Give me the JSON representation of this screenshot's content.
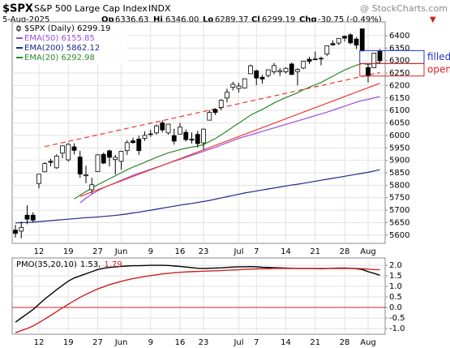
{
  "header": {
    "symbol": "$SPX",
    "name": "S&P 500 Large Cap Index",
    "exchange": "INDX",
    "source": "@ StockCharts.com",
    "date": "5-Aug-2025",
    "open_label": "Op",
    "open": "6336.63",
    "high_label": "Hi",
    "high": "6346.00",
    "low_label": "Lo",
    "low": "6289.37",
    "close_label": "Cl",
    "close": "6299.19",
    "change_label": "Chg",
    "change": "-30.75 (-0.49%)",
    "arrow": "▼"
  },
  "chart_data": [
    {
      "type": "candlestick",
      "legend": "$SPX (Daily) 6299.19",
      "categories": [
        null,
        null,
        null,
        null,
        "12",
        null,
        null,
        null,
        null,
        "19",
        null,
        null,
        null,
        null,
        "27",
        null,
        null,
        null,
        "Jun",
        null,
        null,
        null,
        null,
        "9",
        null,
        null,
        null,
        null,
        "16",
        null,
        null,
        null,
        "23",
        null,
        null,
        null,
        null,
        null,
        "Jul",
        null,
        null,
        "7",
        null,
        null,
        null,
        null,
        "14",
        null,
        null,
        null,
        null,
        "21",
        null,
        null,
        null,
        null,
        "28",
        null,
        null,
        null,
        "Aug",
        null,
        null
      ],
      "open": [
        5620,
        5616,
        5680,
        5680,
        5807,
        5854,
        5896,
        5870,
        5929,
        5902,
        5954,
        5913,
        5838,
        5782,
        5855,
        5924,
        5938,
        5903,
        5896,
        5939,
        5978,
        5985,
        5988,
        6005,
        6010,
        6050,
        6010,
        5999,
        6005,
        6012,
        5985,
        6004,
        5970,
        6061,
        6104,
        6112,
        6150,
        6193,
        6188,
        6190,
        6247,
        6259,
        6233,
        6240,
        6255,
        6255,
        6255,
        6286,
        6256,
        6270,
        6305,
        6304,
        6307,
        6326,
        6368,
        6370,
        6397,
        6403,
        6386,
        6427,
        6272,
        6271,
        6336.63
      ],
      "high": [
        5641,
        5654,
        5720,
        5692,
        5845,
        5893,
        5906,
        5924,
        5959,
        5969,
        5968,
        5938,
        5878,
        5830,
        5924,
        5931,
        5943,
        5922,
        5937,
        5981,
        5991,
        5999,
        6016,
        6022,
        6044,
        6060,
        6046,
        6027,
        6050,
        6024,
        6012,
        6018,
        6028,
        6101,
        6109,
        6145,
        6187,
        6215,
        6211,
        6228,
        6284,
        6263,
        6243,
        6265,
        6290,
        6269,
        6273,
        6292,
        6270,
        6298,
        6315,
        6336,
        6316,
        6359,
        6381,
        6390,
        6401,
        6409,
        6394,
        6428,
        6288,
        6330,
        6346.0
      ],
      "low": [
        5590,
        5587,
        5644,
        5650,
        5787,
        5854,
        5876,
        5866,
        5908,
        5895,
        5924,
        5830,
        5808,
        5767,
        5855,
        5885,
        5875,
        5843,
        5862,
        5922,
        5967,
        5921,
        5978,
        5994,
        6003,
        6012,
        6003,
        5963,
        6005,
        5975,
        5967,
        5952,
        5943,
        6060,
        6082,
        6101,
        6132,
        6180,
        6172,
        6188,
        6247,
        6201,
        6207,
        6233,
        6245,
        6238,
        6248,
        6243,
        6200,
        6265,
        6286,
        6303,
        6281,
        6318,
        6360,
        6362,
        6376,
        6365,
        6346,
        6336,
        6212,
        6271,
        6289.37
      ],
      "close": [
        5607,
        5631,
        5664,
        5660,
        5844,
        5887,
        5892,
        5917,
        5958,
        5964,
        5940,
        5845,
        5842,
        5802,
        5922,
        5889,
        5912,
        5912,
        5936,
        5971,
        5971,
        5939,
        6000,
        6006,
        6038,
        6022,
        6045,
        5977,
        6033,
        5983,
        5981,
        5967,
        6025,
        6092,
        6092,
        6141,
        6173,
        6205,
        6198,
        6227,
        6279,
        6230,
        6226,
        6263,
        6280,
        6260,
        6269,
        6244,
        6264,
        6297,
        6297,
        6306,
        6309,
        6359,
        6363,
        6389,
        6390,
        6371,
        6362,
        6339,
        6238,
        6330,
        6299.19
      ],
      "series": [
        {
          "name": "EMA(50) 6155.85",
          "color": "#9b4fd8",
          "values": [
            null,
            null,
            null,
            null,
            null,
            null,
            null,
            null,
            null,
            null,
            null,
            5730,
            5748,
            5764,
            5778,
            5790,
            5800,
            5810,
            5820,
            5830,
            5840,
            5848,
            5856,
            5864,
            5872,
            5880,
            5888,
            5896,
            5904,
            5912,
            5920,
            5928,
            5936,
            5944,
            5952,
            5961,
            5970,
            5979,
            5988,
            5995,
            6002,
            6009,
            6016,
            6023,
            6030,
            6037,
            6044,
            6051,
            6058,
            6065,
            6072,
            6079,
            6086,
            6093,
            6101,
            6109,
            6117,
            6125,
            6133,
            6140,
            6144,
            6150,
            6156
          ]
        },
        {
          "name": "EMA(200) 5862.12",
          "color": "#1a2a8a",
          "values": [
            5649,
            5650,
            5651,
            5652,
            5654,
            5656,
            5658,
            5660,
            5662,
            5664,
            5666,
            5668,
            5670,
            5671,
            5673,
            5675,
            5677,
            5679,
            5682,
            5685,
            5689,
            5692,
            5696,
            5700,
            5704,
            5708,
            5712,
            5716,
            5720,
            5724,
            5727,
            5731,
            5735,
            5739,
            5744,
            5749,
            5754,
            5759,
            5764,
            5769,
            5773,
            5777,
            5781,
            5785,
            5789,
            5793,
            5797,
            5801,
            5804,
            5808,
            5812,
            5816,
            5820,
            5824,
            5828,
            5832,
            5836,
            5840,
            5844,
            5848,
            5852,
            5857,
            5862
          ]
        },
        {
          "name": "EMA(20) 6292.98",
          "color": "#2a8a2a",
          "values": [
            null,
            null,
            null,
            null,
            null,
            null,
            null,
            null,
            null,
            null,
            5745,
            5760,
            5775,
            5788,
            5802,
            5814,
            5826,
            5838,
            5850,
            5862,
            5873,
            5882,
            5892,
            5902,
            5912,
            5921,
            5930,
            5936,
            5943,
            5948,
            5953,
            5957,
            5963,
            5975,
            5987,
            6002,
            6017,
            6034,
            6049,
            6065,
            6081,
            6093,
            6104,
            6117,
            6130,
            6141,
            6152,
            6161,
            6171,
            6183,
            6193,
            6203,
            6212,
            6225,
            6237,
            6250,
            6262,
            6272,
            6281,
            6288,
            6284,
            6289,
            6293
          ]
        }
      ],
      "trendlines": [
        {
          "color": "#e8382f",
          "dashed": true,
          "x": [
            5,
            62
          ],
          "y": [
            5955,
            6252
          ]
        },
        {
          "color": "#e8382f",
          "dashed": false,
          "x": [
            11,
            62
          ],
          "y": [
            5755,
            6209
          ]
        }
      ],
      "annotations": [
        {
          "text": "filled",
          "color": "#2233cc",
          "x": 59,
          "y": [
            6288,
            6340
          ]
        },
        {
          "text": "open",
          "color": "#dd2222",
          "x": 59,
          "y": [
            6238,
            6288
          ]
        }
      ],
      "ylim": [
        5567,
        6455
      ],
      "yticks": [
        5600,
        5650,
        5700,
        5750,
        5800,
        5850,
        5900,
        5950,
        6000,
        6050,
        6100,
        6150,
        6200,
        6250,
        6300,
        6350,
        6400
      ],
      "grid": true
    },
    {
      "type": "line",
      "title": "PMO(35,20,10)",
      "series": [
        {
          "name": "1.53,",
          "color": "#000000",
          "values": [
            -0.7,
            -0.5,
            -0.3,
            -0.1,
            0.15,
            0.4,
            0.62,
            0.84,
            1.05,
            1.25,
            1.4,
            1.5,
            1.6,
            1.7,
            1.8,
            1.86,
            1.9,
            1.93,
            1.95,
            1.97,
            1.98,
            1.98,
            1.99,
            2.0,
            2.0,
            2.0,
            1.99,
            1.97,
            1.95,
            1.92,
            1.89,
            1.86,
            1.85,
            1.86,
            1.87,
            1.88,
            1.9,
            1.92,
            1.93,
            1.93,
            1.94,
            1.93,
            1.91,
            1.9,
            1.89,
            1.88,
            1.87,
            1.86,
            1.85,
            1.85,
            1.85,
            1.85,
            1.84,
            1.85,
            1.86,
            1.87,
            1.87,
            1.86,
            1.84,
            1.8,
            1.7,
            1.62,
            1.53
          ]
        },
        {
          "name": "1.79",
          "color": "#cc2222",
          "values": [
            -1.2,
            -1.1,
            -1.0,
            -0.88,
            -0.72,
            -0.55,
            -0.38,
            -0.2,
            -0.02,
            0.15,
            0.32,
            0.48,
            0.62,
            0.75,
            0.88,
            0.98,
            1.08,
            1.16,
            1.24,
            1.31,
            1.37,
            1.42,
            1.47,
            1.51,
            1.55,
            1.59,
            1.62,
            1.65,
            1.67,
            1.69,
            1.7,
            1.71,
            1.72,
            1.73,
            1.74,
            1.75,
            1.77,
            1.78,
            1.79,
            1.81,
            1.82,
            1.83,
            1.84,
            1.84,
            1.85,
            1.85,
            1.85,
            1.85,
            1.85,
            1.85,
            1.85,
            1.85,
            1.85,
            1.85,
            1.85,
            1.85,
            1.85,
            1.85,
            1.85,
            1.84,
            1.82,
            1.8,
            1.79
          ]
        }
      ],
      "zero_line": 0,
      "zero_color": "#cc2222",
      "ylim": [
        -1.27,
        2.35
      ],
      "yticks": [
        {
          "value": 2,
          "label": "2.0"
        },
        1.5,
        {
          "value": 1,
          "label": "1.0"
        },
        0.5,
        {
          "value": 0,
          "label": "0.0"
        },
        -0.5,
        {
          "value": -1,
          "label": "-1.0"
        }
      ],
      "grid": true
    }
  ]
}
